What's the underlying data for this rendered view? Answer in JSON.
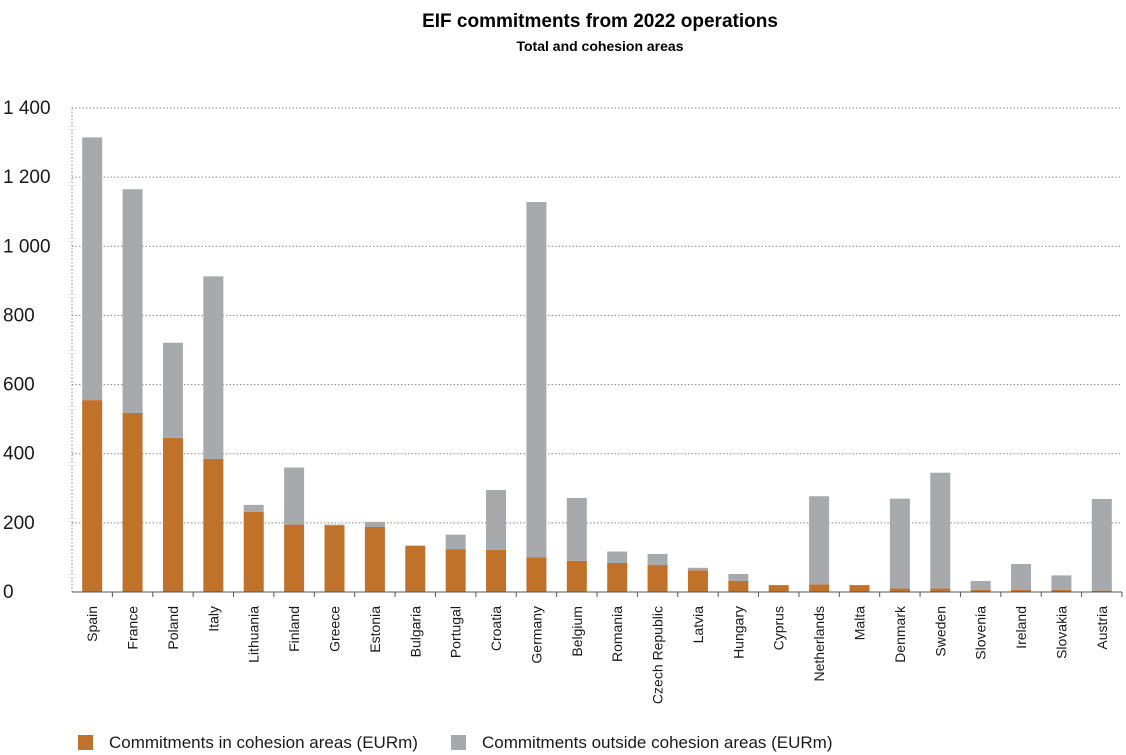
{
  "chart_data": {
    "type": "bar",
    "stacked": true,
    "title": "EIF commitments from 2022 operations",
    "subtitle": "Total and cohesion areas",
    "xlabel": "",
    "ylabel": "",
    "ylim": [
      0,
      1400
    ],
    "yticks": [
      0,
      200,
      400,
      600,
      800,
      1000,
      1200,
      1400
    ],
    "ytick_labels": [
      "0",
      "200",
      "400",
      "600",
      "800",
      "1 000",
      "1 200",
      "1 400"
    ],
    "grid": true,
    "legend_position": "bottom-left",
    "categories": [
      "Spain",
      "France",
      "Poland",
      "Italy",
      "Lithuania",
      "Finland",
      "Greece",
      "Estonia",
      "Bulgaria",
      "Portugal",
      "Croatia",
      "Germany",
      "Belgium",
      "Romania",
      "Czech Republic",
      "Latvia",
      "Hungary",
      "Cyprus",
      "Netherlands",
      "Malta",
      "Denmark",
      "Sweden",
      "Slovenia",
      "Ireland",
      "Slovakia",
      "Austria"
    ],
    "series": [
      {
        "name": "Commitments in cohesion areas (EURm)",
        "color": "#c0722a",
        "values": [
          555,
          518,
          446,
          385,
          232,
          195,
          193,
          188,
          134,
          124,
          122,
          100,
          90,
          84,
          78,
          63,
          32,
          20,
          22,
          20,
          10,
          10,
          6,
          6,
          6,
          4
        ]
      },
      {
        "name": "Commitments outside cohesion areas (EURm)",
        "color": "#a7a9ac",
        "values": [
          760,
          647,
          275,
          528,
          20,
          165,
          2,
          15,
          0,
          42,
          173,
          1028,
          182,
          33,
          32,
          7,
          20,
          0,
          255,
          0,
          260,
          335,
          26,
          75,
          42,
          265
        ]
      }
    ]
  }
}
